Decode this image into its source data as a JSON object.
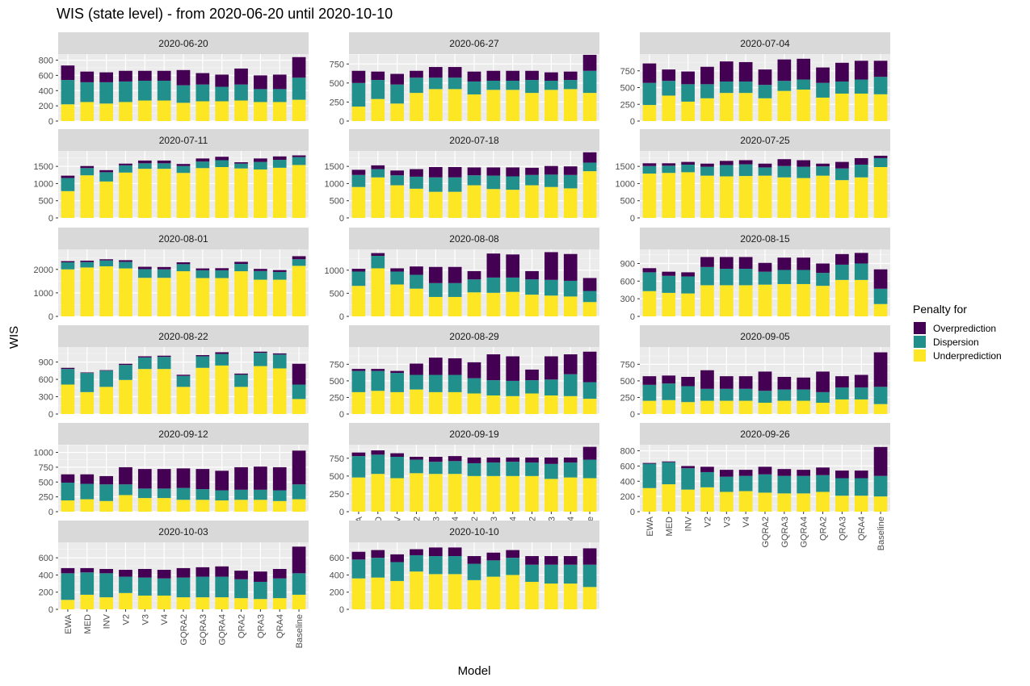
{
  "title": "WIS (state level) - from 2020-06-20 until 2020-10-10",
  "chart_data": {
    "type": "bar",
    "stacked": true,
    "xlabel": "Model",
    "ylabel": "WIS",
    "models": [
      "EWA",
      "MED",
      "INV",
      "V2",
      "V3",
      "V4",
      "GQRA2",
      "GQRA3",
      "GQRA4",
      "QRA2",
      "QRA3",
      "QRA4",
      "Baseline"
    ],
    "legend": {
      "title": "Penalty for",
      "position": "right",
      "items": [
        {
          "key": "over",
          "label": "Overprediction",
          "color": "#440154"
        },
        {
          "key": "disp",
          "label": "Dispersion",
          "color": "#21908C"
        },
        {
          "key": "under",
          "label": "Underprediction",
          "color": "#FDE725"
        }
      ]
    },
    "panels": [
      {
        "label": "2020-06-20",
        "ylim": [
          0,
          880
        ],
        "yticks": [
          0,
          200,
          400,
          600,
          800
        ],
        "under": [
          220,
          250,
          230,
          250,
          270,
          270,
          240,
          260,
          260,
          270,
          250,
          250,
          280
        ],
        "disp": [
          320,
          260,
          280,
          270,
          260,
          260,
          230,
          220,
          190,
          210,
          170,
          170,
          290
        ],
        "over": [
          190,
          140,
          130,
          140,
          130,
          130,
          200,
          150,
          160,
          210,
          180,
          190,
          270
        ]
      },
      {
        "label": "2020-06-27",
        "ylim": [
          0,
          880
        ],
        "yticks": [
          0,
          250,
          500,
          750
        ],
        "under": [
          190,
          290,
          230,
          370,
          420,
          420,
          350,
          410,
          410,
          370,
          410,
          420,
          370
        ],
        "disp": [
          310,
          250,
          250,
          200,
          150,
          150,
          170,
          120,
          120,
          170,
          120,
          120,
          290
        ],
        "over": [
          160,
          110,
          140,
          90,
          140,
          140,
          130,
          130,
          130,
          120,
          110,
          110,
          210
        ]
      },
      {
        "label": "2020-07-04",
        "ylim": [
          0,
          1000
        ],
        "yticks": [
          0,
          250,
          500,
          750
        ],
        "under": [
          240,
          380,
          290,
          340,
          420,
          420,
          340,
          450,
          470,
          350,
          410,
          410,
          400
        ],
        "disp": [
          330,
          220,
          260,
          210,
          170,
          170,
          200,
          150,
          150,
          220,
          180,
          210,
          260
        ],
        "over": [
          290,
          170,
          190,
          260,
          300,
          290,
          230,
          320,
          310,
          230,
          280,
          280,
          240
        ]
      },
      {
        "label": "2020-07-11",
        "ylim": [
          0,
          1950
        ],
        "yticks": [
          0,
          500,
          1000,
          1500
        ],
        "under": [
          780,
          1240,
          1060,
          1320,
          1430,
          1430,
          1310,
          1450,
          1480,
          1440,
          1410,
          1460,
          1540
        ],
        "disp": [
          380,
          210,
          270,
          210,
          160,
          160,
          200,
          190,
          200,
          140,
          220,
          230,
          230
        ],
        "over": [
          70,
          60,
          60,
          50,
          80,
          80,
          60,
          90,
          100,
          40,
          100,
          100,
          50
        ]
      },
      {
        "label": "2020-07-18",
        "ylim": [
          0,
          1950
        ],
        "yticks": [
          0,
          500,
          1000,
          1500
        ],
        "under": [
          900,
          1180,
          950,
          850,
          760,
          760,
          950,
          840,
          820,
          950,
          900,
          860,
          1360
        ],
        "disp": [
          350,
          240,
          290,
          350,
          420,
          420,
          290,
          390,
          390,
          300,
          360,
          390,
          250
        ],
        "over": [
          150,
          110,
          140,
          220,
          300,
          300,
          230,
          240,
          260,
          210,
          250,
          250,
          300
        ]
      },
      {
        "label": "2020-07-25",
        "ylim": [
          0,
          1950
        ],
        "yticks": [
          0,
          500,
          1000,
          1500
        ],
        "under": [
          1290,
          1310,
          1330,
          1230,
          1210,
          1220,
          1230,
          1180,
          1160,
          1230,
          1100,
          1180,
          1480
        ],
        "disp": [
          220,
          210,
          220,
          260,
          330,
          340,
          240,
          330,
          330,
          270,
          340,
          370,
          260
        ],
        "over": [
          80,
          70,
          80,
          90,
          120,
          120,
          110,
          200,
          190,
          80,
          190,
          190,
          70
        ]
      },
      {
        "label": "2020-08-01",
        "ylim": [
          0,
          2850
        ],
        "yticks": [
          0,
          1000,
          2000
        ],
        "under": [
          2000,
          2080,
          2130,
          2040,
          1640,
          1640,
          1920,
          1630,
          1630,
          1920,
          1560,
          1560,
          2150
        ],
        "disp": [
          300,
          230,
          250,
          280,
          370,
          360,
          300,
          330,
          330,
          310,
          370,
          330,
          280
        ],
        "over": [
          50,
          60,
          50,
          70,
          100,
          100,
          80,
          80,
          90,
          90,
          90,
          80,
          130
        ]
      },
      {
        "label": "2020-08-08",
        "ylim": [
          0,
          1450
        ],
        "yticks": [
          0,
          500,
          1000
        ],
        "under": [
          660,
          1040,
          690,
          600,
          420,
          420,
          520,
          510,
          530,
          470,
          450,
          430,
          310
        ],
        "disp": [
          310,
          270,
          280,
          300,
          300,
          300,
          280,
          330,
          310,
          330,
          340,
          340,
          240
        ],
        "over": [
          60,
          60,
          70,
          180,
          350,
          350,
          180,
          520,
          500,
          180,
          600,
          580,
          280
        ]
      },
      {
        "label": "2020-08-15",
        "ylim": [
          0,
          1140
        ],
        "yticks": [
          0,
          300,
          600,
          900
        ],
        "under": [
          430,
          400,
          390,
          530,
          530,
          530,
          540,
          550,
          550,
          520,
          620,
          620,
          210
        ],
        "disp": [
          320,
          290,
          290,
          310,
          280,
          280,
          220,
          240,
          240,
          220,
          260,
          280,
          260
        ],
        "over": [
          70,
          70,
          70,
          170,
          200,
          200,
          150,
          210,
          210,
          160,
          180,
          180,
          330
        ]
      },
      {
        "label": "2020-08-22",
        "ylim": [
          0,
          1160
        ],
        "yticks": [
          0,
          300,
          600,
          900
        ],
        "under": [
          510,
          380,
          470,
          590,
          780,
          780,
          470,
          800,
          840,
          470,
          830,
          790,
          260
        ],
        "disp": [
          270,
          330,
          280,
          260,
          200,
          210,
          190,
          200,
          200,
          210,
          230,
          240,
          250
        ],
        "over": [
          20,
          10,
          10,
          20,
          20,
          20,
          20,
          20,
          30,
          20,
          20,
          20,
          360
        ]
      },
      {
        "label": "2020-08-29",
        "ylim": [
          0,
          1010
        ],
        "yticks": [
          0,
          250,
          500,
          750
        ],
        "under": [
          330,
          350,
          330,
          370,
          330,
          330,
          310,
          280,
          270,
          310,
          280,
          270,
          230
        ],
        "disp": [
          320,
          300,
          290,
          220,
          260,
          260,
          230,
          230,
          230,
          200,
          240,
          330,
          250
        ],
        "over": [
          30,
          30,
          30,
          170,
          260,
          250,
          240,
          390,
          370,
          160,
          350,
          300,
          460
        ]
      },
      {
        "label": "2020-09-05",
        "ylim": [
          0,
          1010
        ],
        "yticks": [
          0,
          250,
          500,
          750
        ],
        "under": [
          200,
          210,
          180,
          200,
          200,
          200,
          170,
          200,
          200,
          170,
          220,
          220,
          150
        ],
        "disp": [
          240,
          250,
          240,
          180,
          180,
          180,
          180,
          170,
          170,
          160,
          180,
          180,
          260
        ],
        "over": [
          130,
          120,
          140,
          280,
          190,
          190,
          290,
          190,
          180,
          310,
          170,
          190,
          520
        ]
      },
      {
        "label": "2020-09-12",
        "ylim": [
          0,
          1130
        ],
        "yticks": [
          0,
          250,
          500,
          750,
          1000
        ],
        "under": [
          190,
          210,
          180,
          280,
          230,
          230,
          200,
          200,
          190,
          200,
          200,
          180,
          210
        ],
        "disp": [
          300,
          260,
          280,
          180,
          160,
          160,
          200,
          180,
          170,
          170,
          170,
          180,
          250
        ],
        "over": [
          140,
          160,
          140,
          290,
          330,
          330,
          330,
          340,
          330,
          380,
          390,
          390,
          570
        ]
      },
      {
        "label": "2020-09-19",
        "ylim": [
          0,
          940
        ],
        "yticks": [
          0,
          250,
          500,
          750
        ],
        "under": [
          480,
          530,
          470,
          540,
          530,
          530,
          500,
          500,
          500,
          500,
          460,
          480,
          470
        ],
        "disp": [
          300,
          270,
          300,
          190,
          170,
          180,
          180,
          190,
          200,
          190,
          210,
          210,
          260
        ],
        "over": [
          50,
          60,
          50,
          40,
          70,
          70,
          80,
          70,
          60,
          70,
          90,
          70,
          180
        ]
      },
      {
        "label": "2020-09-26",
        "ylim": [
          0,
          880
        ],
        "yticks": [
          0,
          200,
          400,
          600,
          800
        ],
        "under": [
          310,
          360,
          290,
          320,
          260,
          270,
          250,
          240,
          240,
          260,
          210,
          210,
          200
        ],
        "disp": [
          320,
          290,
          280,
          200,
          200,
          200,
          240,
          230,
          230,
          220,
          230,
          230,
          270
        ],
        "over": [
          10,
          10,
          30,
          70,
          90,
          80,
          100,
          90,
          80,
          100,
          100,
          100,
          380
        ]
      },
      {
        "label": "2020-10-03",
        "ylim": [
          0,
          780
        ],
        "yticks": [
          0,
          200,
          400,
          600
        ],
        "under": [
          110,
          170,
          140,
          190,
          160,
          160,
          140,
          140,
          140,
          130,
          120,
          130,
          170
        ],
        "disp": [
          310,
          260,
          280,
          190,
          210,
          200,
          230,
          240,
          240,
          220,
          200,
          230,
          250
        ],
        "over": [
          60,
          50,
          50,
          80,
          100,
          100,
          110,
          110,
          120,
          100,
          120,
          110,
          310
        ]
      },
      {
        "label": "2020-10-10",
        "ylim": [
          0,
          780
        ],
        "yticks": [
          0,
          200,
          400,
          600
        ],
        "under": [
          360,
          370,
          330,
          440,
          410,
          410,
          340,
          380,
          400,
          320,
          300,
          300,
          260
        ],
        "disp": [
          220,
          230,
          220,
          190,
          210,
          210,
          190,
          190,
          200,
          200,
          220,
          220,
          260
        ],
        "over": [
          90,
          90,
          90,
          70,
          100,
          100,
          90,
          90,
          90,
          100,
          100,
          100,
          190
        ]
      }
    ]
  }
}
